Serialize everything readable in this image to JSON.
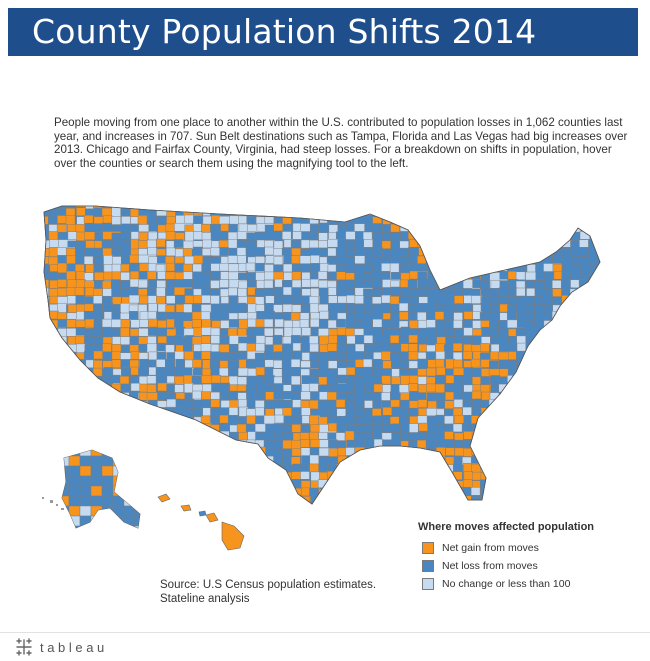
{
  "title": "County Population Shifts 2014",
  "description": "People moving from one place to another within the U.S. contributed to population losses in 1,062 counties last year, and increases in 707. Sun Belt destinations such as Tampa, Florida and Las Vegas had big increases over 2013. Chicago and Fairfax County, Virginia, had steep losses. For a breakdown on shifts in population, hover over the counties or search them using the magnifying tool to the left.",
  "legend": {
    "title": "Where moves affected population",
    "items": [
      {
        "label": "Net gain from moves",
        "color": "#f7941d"
      },
      {
        "label": "Net loss from moves",
        "color": "#4a86c0"
      },
      {
        "label": "No change or less than 100",
        "color": "#c6daf0"
      }
    ]
  },
  "source": {
    "line1": "Source: U.S Census population estimates.",
    "line2": "Stateline analysis"
  },
  "footer": {
    "brand": "tableau",
    "brand_icon": "tableau-plus-logo-icon"
  },
  "colors": {
    "title_bar": "#1f4e8c",
    "gain": "#f7941d",
    "loss": "#4a86c0",
    "neutral": "#c6daf0",
    "county_border": "#7d7d7d"
  }
}
